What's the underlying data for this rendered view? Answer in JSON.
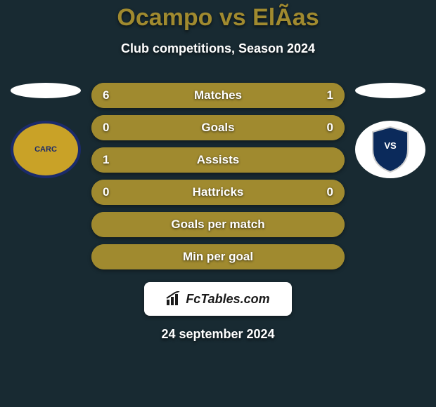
{
  "page": {
    "background_color": "#182a32",
    "title": "Ocampo vs ElÃ­as",
    "title_color": "#a08a2f",
    "subtitle": "Club competitions, Season 2024",
    "subtitle_color": "#ffffff",
    "date": "24 september 2024",
    "date_color": "#ffffff"
  },
  "flags": {
    "left_bg": "#ffffff",
    "right_bg": "#ffffff"
  },
  "crests": {
    "left_bg": "#c9a227",
    "left_text": "CARC",
    "left_accent": "#1b2a6b",
    "right_bg": "#ffffff",
    "right_shield_fill": "#0b2a5b",
    "right_shield_stroke": "#d0d0d0"
  },
  "bars": {
    "track_color": "#a08a2f",
    "left_color": "#a08a2f",
    "right_color": "#a08a2f",
    "label_color": "#ffffff",
    "value_color": "#ffffff",
    "rows": [
      {
        "label": "Matches",
        "left_val": "6",
        "right_val": "1",
        "left_pct": 76,
        "right_pct": 24
      },
      {
        "label": "Goals",
        "left_val": "0",
        "right_val": "0",
        "left_pct": 100,
        "right_pct": 0
      },
      {
        "label": "Assists",
        "left_val": "1",
        "right_val": "",
        "left_pct": 100,
        "right_pct": 0
      },
      {
        "label": "Hattricks",
        "left_val": "0",
        "right_val": "0",
        "left_pct": 100,
        "right_pct": 0
      },
      {
        "label": "Goals per match",
        "left_val": "",
        "right_val": "",
        "left_pct": 100,
        "right_pct": 0
      },
      {
        "label": "Min per goal",
        "left_val": "",
        "right_val": "",
        "left_pct": 100,
        "right_pct": 0
      }
    ]
  },
  "watermark": {
    "box_bg": "#ffffff",
    "text": "FcTables.com",
    "text_color": "#1a1a1a"
  }
}
